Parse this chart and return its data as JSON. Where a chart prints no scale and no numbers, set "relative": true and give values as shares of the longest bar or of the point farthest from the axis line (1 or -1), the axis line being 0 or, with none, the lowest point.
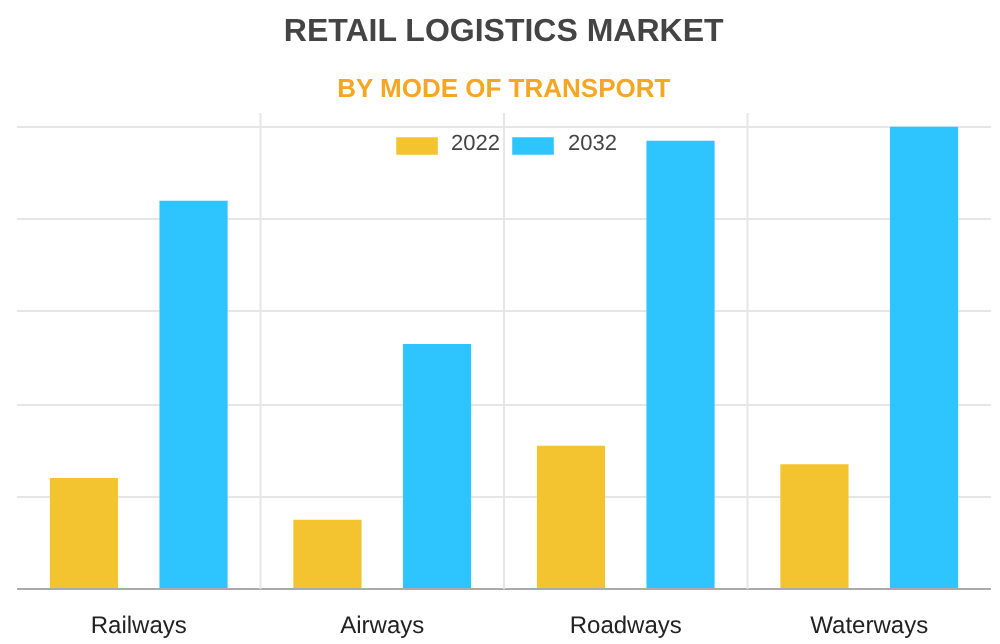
{
  "chart_data": {
    "type": "bar",
    "title": "RETAIL LOGISTICS MARKET",
    "subtitle": "BY MODE OF TRANSPORT",
    "categories": [
      "Railways",
      "Airways",
      "Roadways",
      "Waterways"
    ],
    "relative": true,
    "grid": true,
    "legend": "top",
    "series": [
      {
        "name": "2022",
        "color": "#f4c430",
        "values": [
          0.24,
          0.15,
          0.31,
          0.27
        ]
      },
      {
        "name": "2032",
        "color": "#2ec5ff",
        "values": [
          0.84,
          0.53,
          0.97,
          1.0
        ]
      }
    ]
  }
}
